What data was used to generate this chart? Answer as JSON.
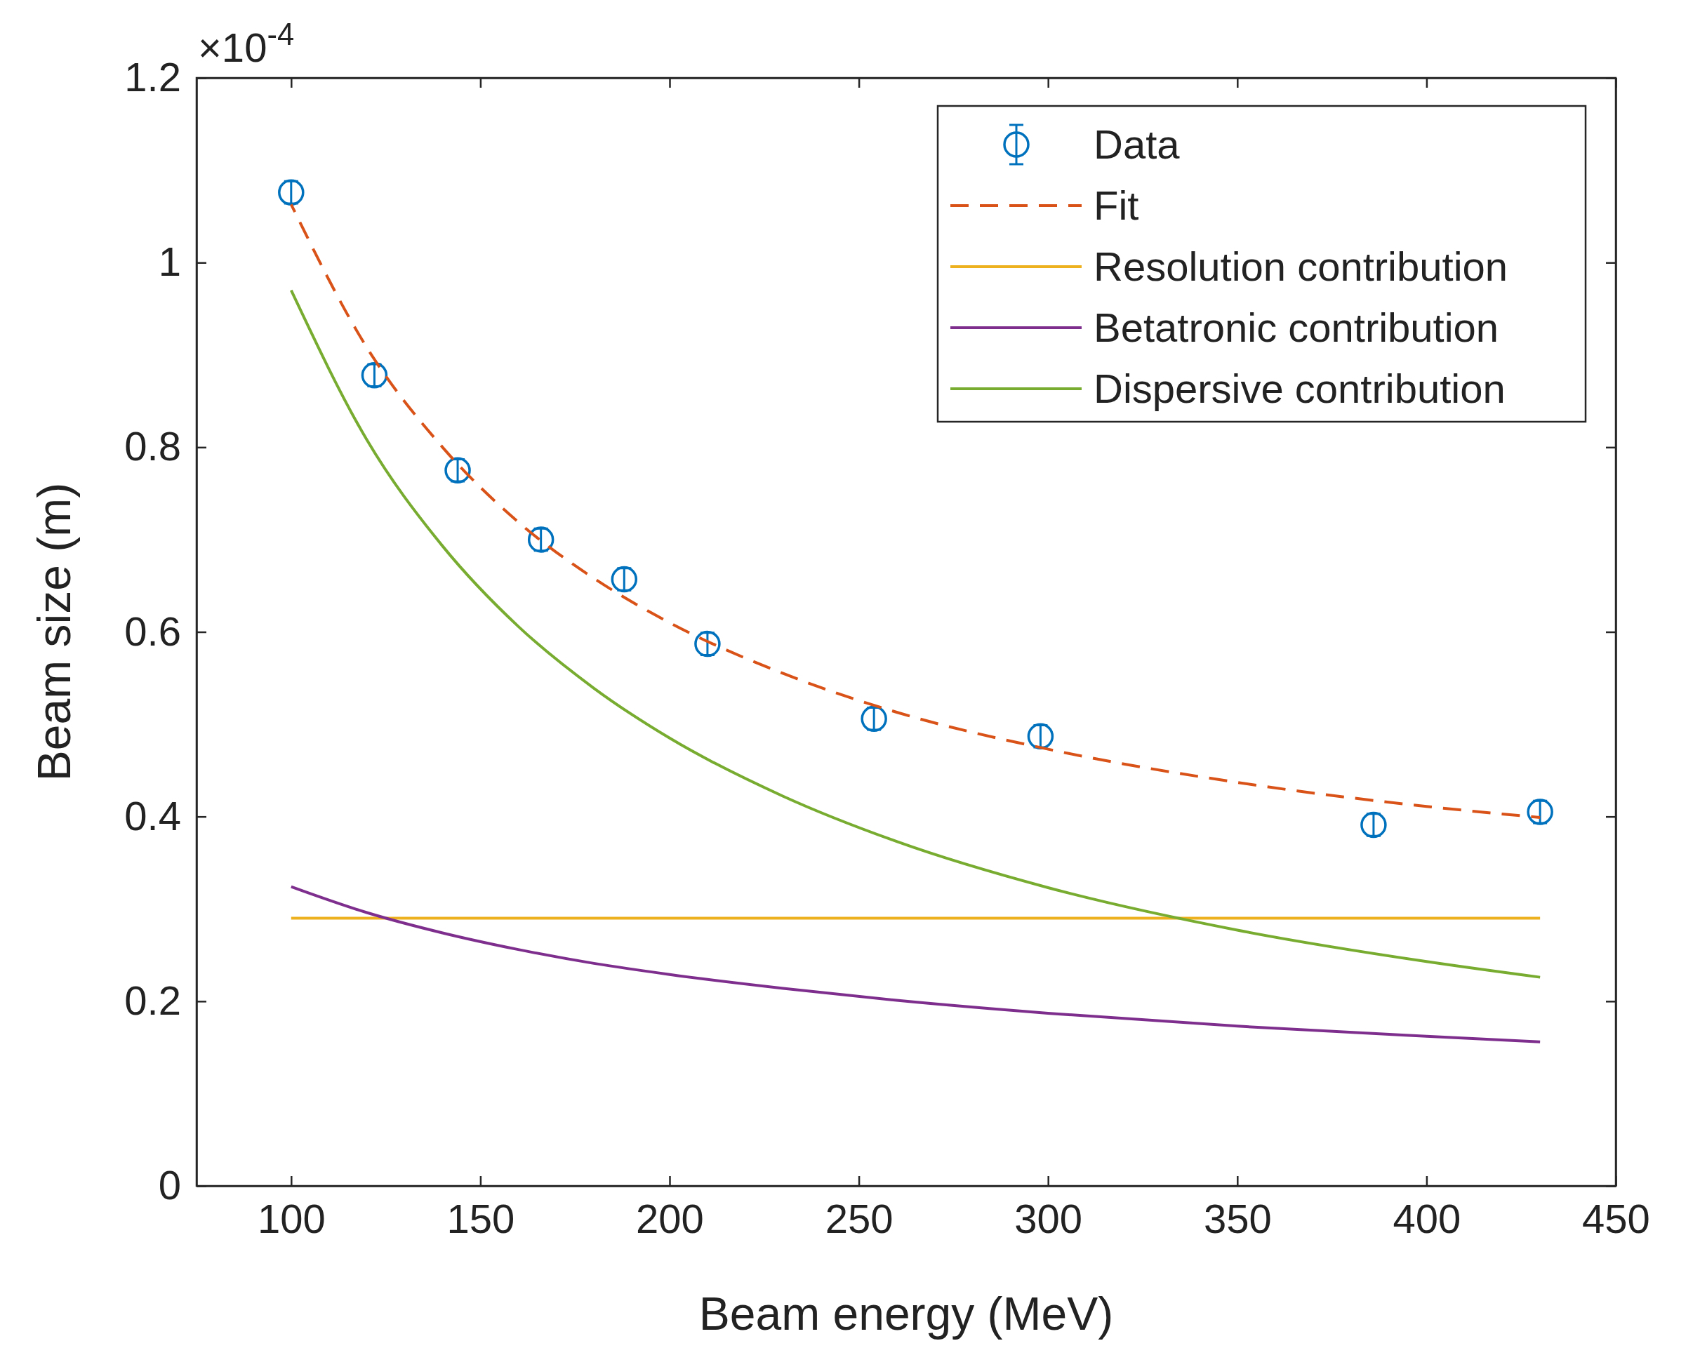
{
  "chart_data": {
    "type": "line",
    "xlabel": "Beam energy (MeV)",
    "ylabel": "Beam size (m)",
    "annotations": [
      "×10$^{-4}$"
    ],
    "xlim": [
      75,
      450
    ],
    "xticks": [
      100,
      150,
      200,
      250,
      300,
      350,
      400,
      450
    ],
    "ylim": [
      0,
      1.2
    ],
    "yticks": [
      0,
      0.2,
      0.4,
      0.6,
      0.8,
      1,
      1.2
    ],
    "grid": false,
    "legend": "top right",
    "series": [
      {
        "name": "Data",
        "type": "scatter",
        "marker": "circle",
        "color": "#0072bd",
        "x": [
          100,
          122,
          144,
          166,
          188,
          210,
          254,
          298,
          386,
          430
        ],
        "values": [
          1.076,
          0.878,
          0.775,
          0.7,
          0.657,
          0.587,
          0.506,
          0.487,
          0.391,
          0.405
        ],
        "errors": [
          0.012,
          0.012,
          0.012,
          0.012,
          0.012,
          0.012,
          0.012,
          0.012,
          0.012,
          0.012
        ]
      },
      {
        "name": "Fit",
        "line_style": "dashed",
        "color": "#d95319",
        "x": [
          100,
          120,
          140,
          160,
          180,
          200,
          230,
          260,
          300,
          350,
          400,
          430
        ],
        "values": [
          1.063,
          0.908,
          0.8,
          0.719,
          0.658,
          0.61,
          0.555,
          0.513,
          0.473,
          0.437,
          0.411,
          0.399
        ]
      },
      {
        "name": "Resolution contribution",
        "line_style": "solid",
        "color": "#edb120",
        "x": [
          100,
          430
        ],
        "values": [
          0.29,
          0.29
        ]
      },
      {
        "name": "Betatronic contribution",
        "line_style": "solid",
        "color": "#7e2f8e",
        "x": [
          100,
          120,
          140,
          160,
          180,
          200,
          230,
          260,
          300,
          350,
          400,
          430
        ],
        "values": [
          0.324,
          0.296,
          0.274,
          0.256,
          0.241,
          0.229,
          0.214,
          0.201,
          0.187,
          0.173,
          0.162,
          0.156
        ]
      },
      {
        "name": "Dispersive contribution",
        "line_style": "solid",
        "color": "#77ac30",
        "x": [
          100,
          120,
          140,
          160,
          180,
          200,
          230,
          260,
          300,
          350,
          400,
          430
        ],
        "values": [
          0.97,
          0.808,
          0.693,
          0.606,
          0.539,
          0.485,
          0.422,
          0.373,
          0.323,
          0.277,
          0.243,
          0.226
        ]
      }
    ]
  }
}
